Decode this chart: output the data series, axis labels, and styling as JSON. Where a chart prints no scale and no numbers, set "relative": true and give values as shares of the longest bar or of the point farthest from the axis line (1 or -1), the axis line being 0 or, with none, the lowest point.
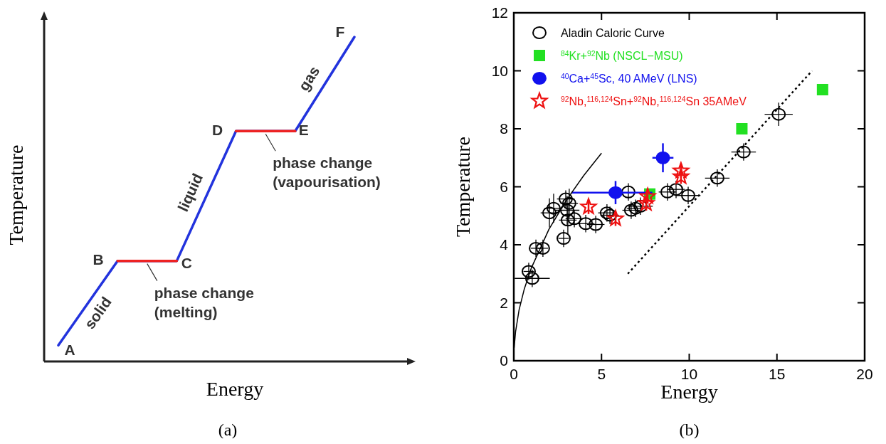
{
  "chart_data": [
    {
      "type": "line",
      "relative": true,
      "xlabel": "Energy",
      "ylabel": "Temperature",
      "categories": [
        null,
        null,
        null,
        null,
        null,
        null
      ],
      "series": [
        {
          "color": "#2233dd",
          "values": [
            0.05,
            0.31,
            0.31,
            0.71,
            0.71,
            1
          ]
        },
        {
          "color": "#ee2222",
          "values": [
            null,
            0.31,
            0.31,
            null,
            null,
            null
          ]
        },
        {
          "color": "#ee2222",
          "values": [
            null,
            null,
            null,
            0.71,
            0.71,
            null
          ]
        }
      ],
      "annotations": [
        "A",
        "B",
        "C",
        "D",
        "E",
        "F",
        "solid",
        "liquid",
        "gas",
        "phase change (melting)",
        "phase change (vapourisation)",
        "(a)"
      ]
    },
    {
      "type": "scatter",
      "xlabel": "Energy",
      "ylabel": "Temperature",
      "xlim": [
        0,
        20
      ],
      "ylim": [
        0,
        12
      ],
      "xticks": [
        0,
        5,
        10,
        15,
        20
      ],
      "yticks": [
        0,
        2,
        4,
        6,
        8,
        10,
        12
      ],
      "legend": "top left",
      "annotations": [
        "(b)"
      ],
      "series": [
        {
          "name": "Aladin Caloric Curve",
          "color": "#000000",
          "marker": "circle",
          "x": [
            0.85,
            1.05,
            1.26,
            1.66,
            2.03,
            2.27,
            2.84,
            2.96,
            3.16,
            3.04,
            3.08,
            3.45,
            4.1,
            4.67,
            5.31,
            5.48,
            6.53,
            6.69,
            6.94,
            7.22,
            8.76,
            9.25,
            9.94,
            11.6,
            13.1,
            15.1
          ],
          "values": [
            3.08,
            2.84,
            3.88,
            3.88,
            5.1,
            5.26,
            4.22,
            5.58,
            5.43,
            5.19,
            4.85,
            4.9,
            4.73,
            4.7,
            5.1,
            5.02,
            5.82,
            5.19,
            5.26,
            5.33,
            5.82,
            5.91,
            5.7,
            6.3,
            7.2,
            8.5
          ],
          "errors": [
            0.3,
            0.3,
            0.3,
            0.3,
            0.5,
            0.5,
            0.3,
            0.3,
            0.5,
            0.5,
            0.5,
            0.3,
            0.3,
            0.3,
            0.3,
            0.3,
            0.3,
            0.3,
            0.3,
            0.3,
            0.3,
            0.3,
            0.3,
            0.3,
            0.3,
            0.4
          ],
          "xerrors": [
            0.3,
            1.0,
            0.3,
            0.3,
            0.5,
            0.5,
            0.3,
            0.5,
            0.5,
            0.7,
            0.5,
            0.5,
            0.5,
            0.5,
            0.5,
            0.5,
            null,
            0.5,
            0.5,
            0.7,
            0.5,
            0.5,
            0.7,
            0.7,
            0.7,
            0.8
          ]
        },
        {
          "name": "$^{84}$Kr+$^{92}$Nb (NSCL−MSU)",
          "color": "#22e022",
          "marker": "square",
          "x": [
            7.75,
            13.0,
            17.6
          ],
          "values": [
            5.75,
            8.0,
            9.35
          ]
        },
        {
          "name": "$^{40}$Ca+$^{45}$Sc, 40 AMeV (LNS)",
          "color": "#1111ee",
          "marker": "circle",
          "x": [
            5.8,
            8.5
          ],
          "values": [
            5.8,
            7.0
          ],
          "errors": [
            0.4,
            0.5
          ],
          "xerrors": [
            [
              3.3,
              7.9
            ],
            0.6
          ]
        },
        {
          "name": "$^{92}$Nb,$^{116,124}$Sn+$^{92}$Nb,$^{116,124}$Sn 35AMeV",
          "color": "#ee1111",
          "marker": "star",
          "x": [
            4.26,
            5.8,
            7.55,
            7.63,
            9.53,
            9.53
          ],
          "values": [
            5.31,
            4.9,
            5.43,
            5.67,
            6.55,
            6.35
          ],
          "errors": [
            0.25,
            0.25,
            0.25,
            0.25,
            0.25,
            0.25
          ]
        },
        {
          "type": "line",
          "color": "#000000",
          "x": [
            0.02,
            0.1,
            0.3,
            0.6,
            1,
            2,
            3,
            4,
            5
          ],
          "values": [
            0.45,
            1.0,
            1.75,
            2.48,
            3.2,
            4.53,
            5.54,
            6.4,
            7.16
          ]
        },
        {
          "type": "line",
          "color": "#000000",
          "line_style": "dotted",
          "x": [
            6.5,
            17
          ],
          "values": [
            3.0,
            10.0
          ]
        }
      ]
    }
  ]
}
